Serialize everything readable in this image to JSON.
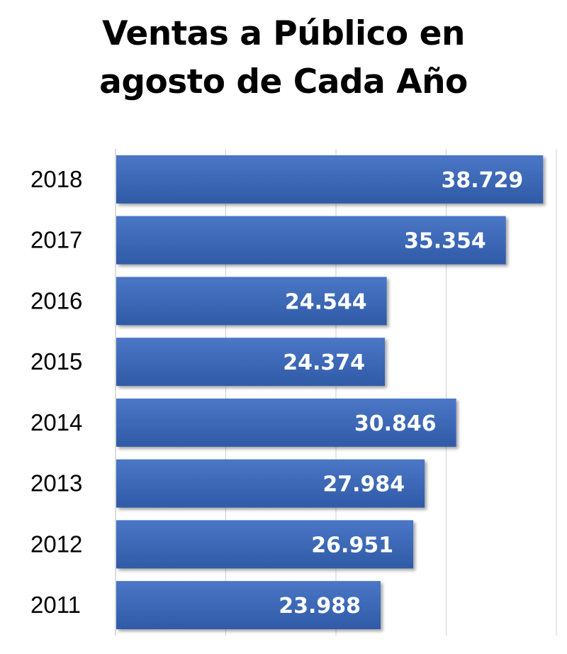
{
  "chart_data": {
    "type": "bar",
    "orientation": "horizontal",
    "title": "Ventas a Público en agosto de Cada Año",
    "title_lines": [
      "Ventas a Público en",
      "agosto de Cada Año"
    ],
    "categories": [
      "2018",
      "2017",
      "2016",
      "2015",
      "2014",
      "2013",
      "2012",
      "2011"
    ],
    "values": [
      38729,
      35354,
      24544,
      24374,
      30846,
      27984,
      26951,
      23988
    ],
    "data_labels": [
      "38.729",
      "35.354",
      "24.544",
      "24.374",
      "30.846",
      "27.984",
      "26.951",
      "23.988"
    ],
    "xlim": [
      0,
      40000
    ],
    "grid": true,
    "legend": "none",
    "bar_color": "#3a66b8",
    "bar_color_dark": "#2a4f96",
    "gridline_color": "#d0d0d0"
  }
}
